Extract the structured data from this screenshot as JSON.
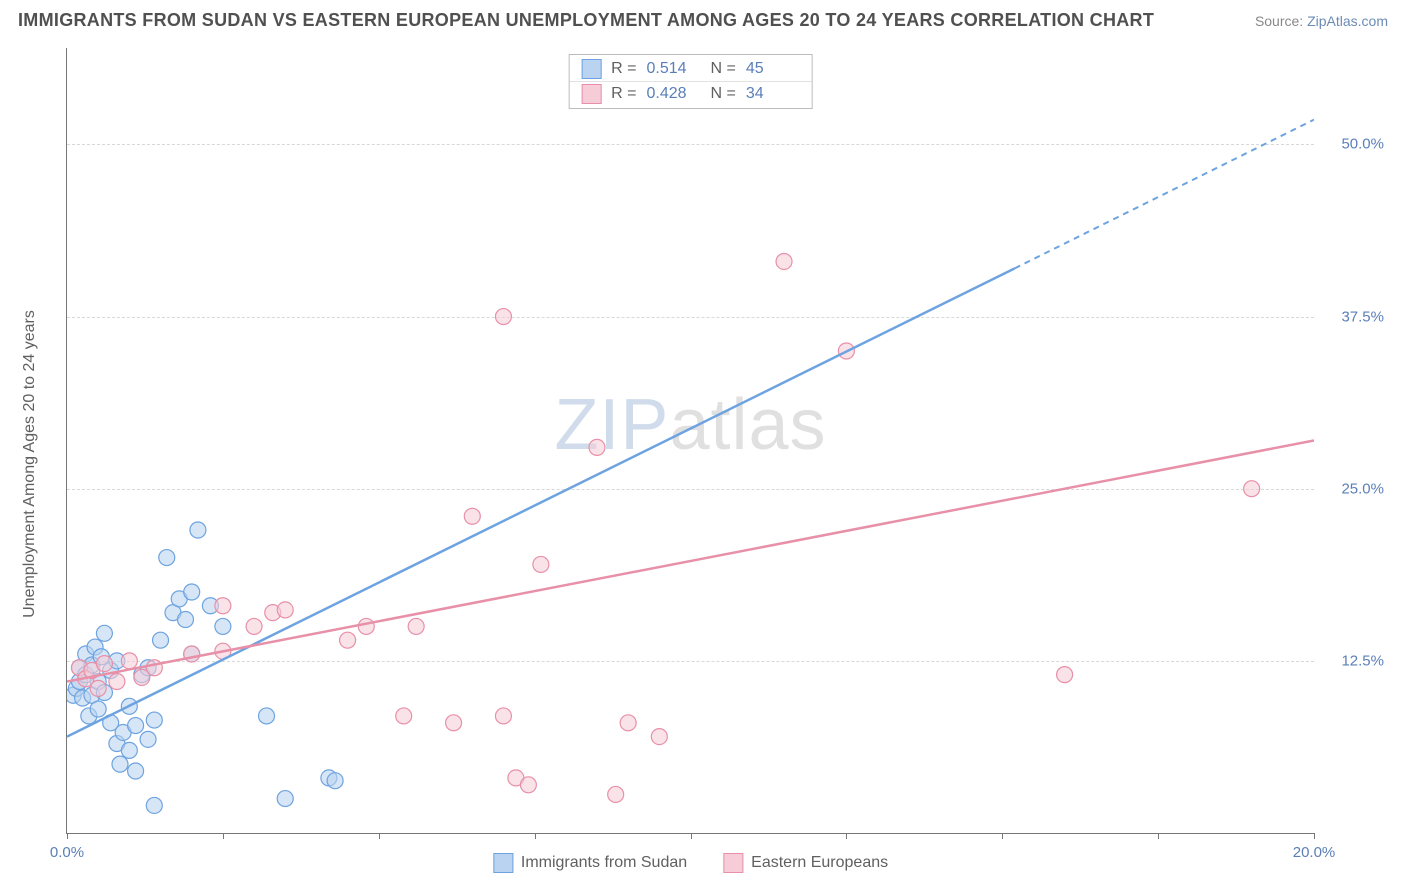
{
  "header": {
    "title": "IMMIGRANTS FROM SUDAN VS EASTERN EUROPEAN UNEMPLOYMENT AMONG AGES 20 TO 24 YEARS CORRELATION CHART",
    "source_prefix": "Source: ",
    "source_link": "ZipAtlas.com"
  },
  "chart": {
    "type": "scatter",
    "y_axis_title": "Unemployment Among Ages 20 to 24 years",
    "watermark_a": "ZIP",
    "watermark_b": "atlas",
    "xlim": [
      0,
      20
    ],
    "ylim": [
      0,
      57
    ],
    "x_ticks": [
      0,
      2.5,
      5,
      7.5,
      10,
      12.5,
      15,
      17.5,
      20
    ],
    "x_tick_labels": {
      "0": "0.0%",
      "20": "20.0%"
    },
    "y_grid": [
      12.5,
      25.0,
      37.5,
      50.0
    ],
    "y_tick_labels": [
      "12.5%",
      "25.0%",
      "37.5%",
      "50.0%"
    ],
    "grid_color": "#d8d8d8",
    "axis_color": "#777777",
    "tick_label_color": "#5a7fb8",
    "background_color": "#ffffff",
    "marker_radius": 8,
    "marker_stroke_width": 1.2,
    "marker_fill_opacity": 0.22,
    "series": [
      {
        "id": "sudan",
        "label": "Immigrants from Sudan",
        "color_stroke": "#6da3e0",
        "color_fill": "#b9d3f0",
        "r_label": "R =",
        "r_value": "0.514",
        "n_label": "N =",
        "n_value": "45",
        "regression": {
          "x1": 0,
          "y1": 7.0,
          "x2": 15.2,
          "y2": 41.0,
          "extend_to_x": 20,
          "extend_to_y": 51.8,
          "width": 2.5
        },
        "points": [
          [
            0.1,
            10.0
          ],
          [
            0.15,
            10.5
          ],
          [
            0.2,
            11.0
          ],
          [
            0.2,
            12.0
          ],
          [
            0.25,
            9.8
          ],
          [
            0.3,
            11.5
          ],
          [
            0.3,
            13.0
          ],
          [
            0.35,
            8.5
          ],
          [
            0.4,
            12.2
          ],
          [
            0.4,
            10.0
          ],
          [
            0.45,
            13.5
          ],
          [
            0.5,
            11.0
          ],
          [
            0.5,
            9.0
          ],
          [
            0.55,
            12.8
          ],
          [
            0.6,
            14.5
          ],
          [
            0.6,
            10.2
          ],
          [
            0.7,
            8.0
          ],
          [
            0.7,
            11.8
          ],
          [
            0.8,
            6.5
          ],
          [
            0.8,
            12.5
          ],
          [
            0.85,
            5.0
          ],
          [
            0.9,
            7.3
          ],
          [
            1.0,
            6.0
          ],
          [
            1.0,
            9.2
          ],
          [
            1.1,
            7.8
          ],
          [
            1.1,
            4.5
          ],
          [
            1.2,
            11.5
          ],
          [
            1.3,
            6.8
          ],
          [
            1.3,
            12.0
          ],
          [
            1.4,
            8.2
          ],
          [
            1.5,
            14.0
          ],
          [
            1.6,
            20.0
          ],
          [
            1.7,
            16.0
          ],
          [
            1.8,
            17.0
          ],
          [
            1.9,
            15.5
          ],
          [
            2.0,
            17.5
          ],
          [
            2.0,
            13.0
          ],
          [
            2.1,
            22.0
          ],
          [
            2.3,
            16.5
          ],
          [
            2.5,
            15.0
          ],
          [
            3.2,
            8.5
          ],
          [
            3.5,
            2.5
          ],
          [
            4.2,
            4.0
          ],
          [
            4.3,
            3.8
          ],
          [
            1.4,
            2.0
          ]
        ]
      },
      {
        "id": "eastern",
        "label": "Eastern Europeans",
        "color_stroke": "#e890a8",
        "color_fill": "#f5ccd7",
        "r_label": "R =",
        "r_value": "0.428",
        "n_label": "N =",
        "n_value": "34",
        "regression": {
          "x1": 0,
          "y1": 11.0,
          "x2": 20,
          "y2": 28.5,
          "width": 2.5
        },
        "points": [
          [
            0.2,
            12.0
          ],
          [
            0.3,
            11.2
          ],
          [
            0.4,
            11.8
          ],
          [
            0.5,
            10.5
          ],
          [
            0.6,
            12.3
          ],
          [
            0.8,
            11.0
          ],
          [
            1.0,
            12.5
          ],
          [
            1.2,
            11.3
          ],
          [
            1.4,
            12.0
          ],
          [
            2.0,
            13.0
          ],
          [
            2.5,
            16.5
          ],
          [
            2.5,
            13.2
          ],
          [
            3.0,
            15.0
          ],
          [
            3.3,
            16.0
          ],
          [
            3.5,
            16.2
          ],
          [
            4.5,
            14.0
          ],
          [
            4.8,
            15.0
          ],
          [
            5.4,
            8.5
          ],
          [
            5.6,
            15.0
          ],
          [
            6.2,
            8.0
          ],
          [
            6.5,
            23.0
          ],
          [
            7.0,
            8.5
          ],
          [
            7.0,
            37.5
          ],
          [
            7.2,
            4.0
          ],
          [
            7.4,
            3.5
          ],
          [
            7.6,
            19.5
          ],
          [
            8.5,
            28.0
          ],
          [
            8.8,
            2.8
          ],
          [
            9.0,
            8.0
          ],
          [
            9.5,
            7.0
          ],
          [
            11.5,
            41.5
          ],
          [
            12.5,
            35.0
          ],
          [
            16.0,
            11.5
          ],
          [
            19.0,
            25.0
          ]
        ]
      }
    ],
    "legend_bottom": [
      {
        "swatch_fill": "#b9d3f0",
        "swatch_stroke": "#6da3e0",
        "label": "Immigrants from Sudan"
      },
      {
        "swatch_fill": "#f5ccd7",
        "swatch_stroke": "#e890a8",
        "label": "Eastern Europeans"
      }
    ]
  }
}
